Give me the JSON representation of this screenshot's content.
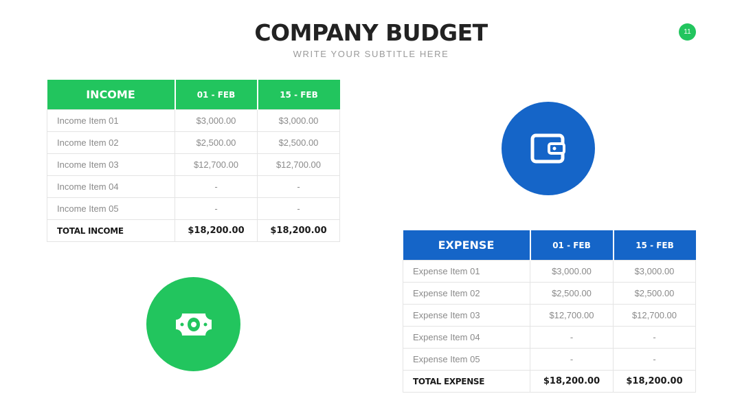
{
  "header": {
    "title": "COMPANY BUDGET",
    "subtitle": "WRITE YOUR SUBTITLE HERE",
    "page_number": "11"
  },
  "income": {
    "headers": [
      "INCOME",
      "01 - FEB",
      "15 - FEB"
    ],
    "rows": [
      [
        "Income Item 01",
        "$3,000.00",
        "$3,000.00"
      ],
      [
        "Income Item 02",
        "$2,500.00",
        "$2,500.00"
      ],
      [
        "Income Item 03",
        "$12,700.00",
        "$12,700.00"
      ],
      [
        "Income Item 04",
        "-",
        "-"
      ],
      [
        "Income Item 05",
        "-",
        "-"
      ]
    ],
    "total": [
      "TOTAL INCOME",
      "$18,200.00",
      "$18,200.00"
    ]
  },
  "expense": {
    "headers": [
      "EXPENSE",
      "01 - FEB",
      "15 - FEB"
    ],
    "rows": [
      [
        "Expense Item 01",
        "$3,000.00",
        "$3,000.00"
      ],
      [
        "Expense Item 02",
        "$2,500.00",
        "$2,500.00"
      ],
      [
        "Expense Item 03",
        "$12,700.00",
        "$12,700.00"
      ],
      [
        "Expense Item 04",
        "-",
        "-"
      ],
      [
        "Expense Item 05",
        "-",
        "-"
      ]
    ],
    "total": [
      "TOTAL EXPENSE",
      "$18,200.00",
      "$18,200.00"
    ]
  },
  "icons": {
    "expense": "wallet-icon",
    "income": "money-bill-icon"
  },
  "colors": {
    "income_accent": "#22c55e",
    "expense_accent": "#1565c8",
    "title": "#222222"
  }
}
